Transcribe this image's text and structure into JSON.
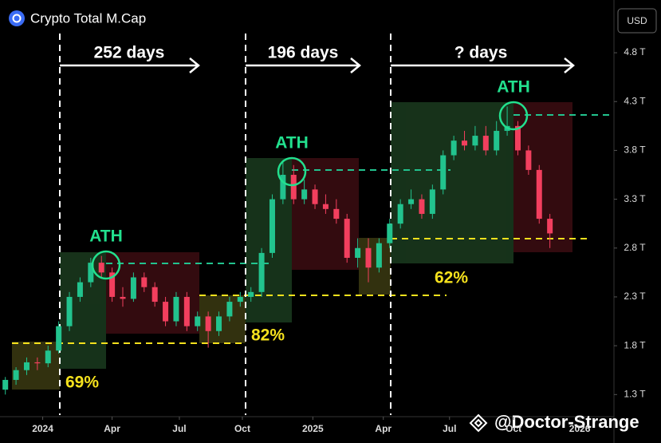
{
  "chart_data": {
    "type": "candlestick",
    "title": "Crypto Total M.Cap",
    "currency": "USD",
    "watermark": "@Doctor-Strange",
    "up_color": "#22c38e",
    "down_color": "#f23f5e",
    "categories": [
      null,
      null,
      null,
      null,
      null,
      null,
      null,
      null,
      null,
      null,
      null,
      null,
      null,
      null,
      null,
      null,
      null,
      null,
      null,
      null,
      null,
      null,
      null,
      null,
      null,
      null,
      null,
      null,
      null,
      null,
      null,
      null,
      null,
      null,
      null,
      null,
      null,
      null,
      null,
      null,
      null,
      null,
      null,
      null,
      null,
      null,
      null,
      null,
      null,
      null,
      null,
      null
    ],
    "open": [
      1.35,
      1.45,
      1.55,
      1.63,
      1.62,
      1.75,
      2.0,
      2.3,
      2.45,
      2.65,
      2.55,
      2.3,
      2.28,
      2.5,
      2.4,
      2.25,
      2.05,
      2.3,
      2.0,
      2.1,
      1.95,
      2.1,
      2.25,
      2.3,
      2.35,
      2.75,
      3.3,
      3.55,
      3.3,
      3.4,
      3.25,
      3.2,
      3.1,
      2.7,
      2.8,
      2.6,
      2.85,
      3.05,
      3.25,
      3.3,
      3.15,
      3.4,
      3.75,
      3.9,
      3.85,
      3.95,
      3.8,
      4.0,
      4.05,
      3.8,
      3.6,
      3.1
    ],
    "high": [
      1.48,
      1.58,
      1.68,
      1.68,
      1.8,
      2.05,
      2.35,
      2.5,
      2.7,
      2.72,
      2.6,
      2.4,
      2.55,
      2.55,
      2.45,
      2.3,
      2.35,
      2.35,
      2.15,
      2.15,
      2.15,
      2.3,
      2.35,
      2.4,
      2.8,
      3.35,
      3.7,
      3.65,
      3.5,
      3.45,
      3.35,
      3.3,
      3.15,
      2.9,
      2.9,
      2.9,
      3.1,
      3.3,
      3.4,
      3.35,
      3.45,
      3.8,
      3.95,
      4.0,
      4.05,
      4.05,
      4.1,
      4.25,
      4.1,
      3.85,
      3.65,
      3.15
    ],
    "low": [
      1.3,
      1.4,
      1.5,
      1.55,
      1.58,
      1.72,
      1.95,
      2.25,
      2.4,
      2.5,
      2.25,
      2.2,
      2.25,
      2.35,
      2.2,
      2.0,
      2.0,
      1.95,
      1.95,
      1.78,
      1.9,
      2.05,
      2.2,
      2.25,
      2.3,
      2.7,
      3.25,
      3.25,
      3.25,
      3.2,
      3.15,
      3.05,
      2.65,
      2.6,
      2.45,
      2.55,
      2.8,
      3.0,
      3.2,
      3.1,
      3.1,
      3.35,
      3.7,
      3.8,
      3.8,
      3.75,
      3.75,
      3.95,
      3.75,
      3.55,
      3.05,
      2.8
    ],
    "close": [
      1.45,
      1.55,
      1.63,
      1.62,
      1.75,
      2.0,
      2.3,
      2.45,
      2.65,
      2.55,
      2.3,
      2.28,
      2.5,
      2.4,
      2.25,
      2.05,
      2.3,
      2.0,
      2.1,
      1.95,
      2.1,
      2.25,
      2.3,
      2.35,
      2.75,
      3.3,
      3.55,
      3.3,
      3.4,
      3.25,
      3.2,
      3.1,
      2.7,
      2.8,
      2.6,
      2.85,
      3.05,
      3.25,
      3.3,
      3.15,
      3.4,
      3.75,
      3.9,
      3.85,
      3.95,
      3.8,
      4.0,
      4.05,
      3.8,
      3.6,
      3.1,
      2.95
    ],
    "xlim": [
      -0.5,
      57
    ],
    "xticks": [
      {
        "value": 3.5,
        "label": "2024"
      },
      {
        "value": 10,
        "label": "Apr"
      },
      {
        "value": 16.3,
        "label": "Jul"
      },
      {
        "value": 22.2,
        "label": "Oct"
      },
      {
        "value": 28.8,
        "label": "2025"
      },
      {
        "value": 35.4,
        "label": "Apr"
      },
      {
        "value": 41.6,
        "label": "Jul"
      },
      {
        "value": 47.6,
        "label": "Oct"
      },
      {
        "value": 53.8,
        "label": "2026"
      }
    ],
    "ylim": [
      1.09,
      5.34
    ],
    "yticks": [
      {
        "value": 1.3,
        "label": "1.3 T"
      },
      {
        "value": 1.8,
        "label": "1.8 T"
      },
      {
        "value": 2.3,
        "label": "2.3 T"
      },
      {
        "value": 2.8,
        "label": "2.8 T"
      },
      {
        "value": 3.3,
        "label": "3.3 T"
      },
      {
        "value": 3.8,
        "label": "3.8 T"
      },
      {
        "value": 4.3,
        "label": "4.3 T"
      },
      {
        "value": 4.8,
        "label": "4.8 T"
      }
    ],
    "annotations": {
      "periods": [
        "252 days",
        "196 days",
        "? days"
      ],
      "ath": [
        "ATH",
        "ATH",
        "ATH"
      ],
      "pullbacks": [
        "69%",
        "82%",
        "62%"
      ]
    }
  }
}
